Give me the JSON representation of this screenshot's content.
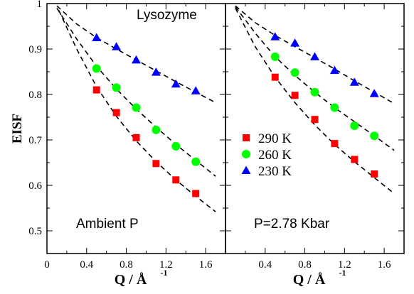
{
  "chart_data": {
    "type": "scatter",
    "ylabel": "EISF",
    "xlabel": "Q / Å",
    "xlabel_exponent": "-1",
    "ylim": [
      0.45,
      1.0
    ],
    "grid": false,
    "y_ticks": [
      "0.5",
      "0.6",
      "0.7",
      "0.8",
      "0.9",
      "1"
    ],
    "colors": {
      "290 K": "#ff0000",
      "260 K": "#00ff00",
      "230 K": "#0000ff"
    },
    "legend": {
      "position": "left of right panel",
      "entries": [
        "290 K",
        "260 K",
        "230 K"
      ]
    },
    "panels": [
      {
        "label": "Ambient P",
        "title": "Lysozyme",
        "xlim": [
          0,
          1.8
        ],
        "x_ticks": [
          "0",
          "0.4",
          "0.8",
          "1.2",
          "1.6"
        ],
        "series": [
          {
            "name": "290 K",
            "marker": "square",
            "x": [
              0.5,
              0.7,
              0.9,
              1.1,
              1.3,
              1.5
            ],
            "y": [
              0.81,
              0.76,
              0.705,
              0.648,
              0.612,
              0.582
            ],
            "fit": [
              [
                0.12,
                0.985
              ],
              [
                0.3,
                0.9
              ],
              [
                0.5,
                0.817
              ],
              [
                0.7,
                0.752
              ],
              [
                0.9,
                0.698
              ],
              [
                1.1,
                0.652
              ],
              [
                1.3,
                0.612
              ],
              [
                1.5,
                0.576
              ],
              [
                1.7,
                0.542
              ]
            ]
          },
          {
            "name": "260 K",
            "marker": "circle",
            "x": [
              0.5,
              0.7,
              0.9,
              1.1,
              1.3,
              1.5
            ],
            "y": [
              0.857,
              0.815,
              0.771,
              0.722,
              0.686,
              0.652
            ],
            "fit": [
              [
                0.1,
                0.99
              ],
              [
                0.3,
                0.922
              ],
              [
                0.5,
                0.862
              ],
              [
                0.7,
                0.812
              ],
              [
                0.9,
                0.768
              ],
              [
                1.1,
                0.728
              ],
              [
                1.3,
                0.69
              ],
              [
                1.5,
                0.655
              ],
              [
                1.7,
                0.62
              ]
            ]
          },
          {
            "name": "230 K",
            "marker": "triangle",
            "x": [
              0.5,
              0.7,
              0.9,
              1.1,
              1.3,
              1.5
            ],
            "y": [
              0.925,
              0.905,
              0.876,
              0.849,
              0.823,
              0.808
            ],
            "fit": [
              [
                0.1,
                0.995
              ],
              [
                0.3,
                0.955
              ],
              [
                0.5,
                0.925
              ],
              [
                0.7,
                0.9
              ],
              [
                0.9,
                0.876
              ],
              [
                1.1,
                0.852
              ],
              [
                1.3,
                0.828
              ],
              [
                1.5,
                0.805
              ],
              [
                1.7,
                0.782
              ]
            ]
          }
        ]
      },
      {
        "label": "P=2.78 Kbar",
        "xlim": [
          0,
          1.8
        ],
        "x_ticks": [
          "0.4",
          "0.8",
          "1.2",
          "1.6"
        ],
        "series": [
          {
            "name": "290 K",
            "marker": "square",
            "x": [
              0.5,
              0.7,
              0.9,
              1.1,
              1.3,
              1.5
            ],
            "y": [
              0.838,
              0.798,
              0.745,
              0.692,
              0.657,
              0.625
            ],
            "fit": [
              [
                0.1,
                0.99
              ],
              [
                0.3,
                0.905
              ],
              [
                0.5,
                0.838
              ],
              [
                0.7,
                0.782
              ],
              [
                0.9,
                0.733
              ],
              [
                1.1,
                0.69
              ],
              [
                1.3,
                0.652
              ],
              [
                1.5,
                0.617
              ],
              [
                1.7,
                0.582
              ]
            ]
          },
          {
            "name": "260 K",
            "marker": "circle",
            "x": [
              0.5,
              0.7,
              0.9,
              1.1,
              1.3,
              1.5
            ],
            "y": [
              0.883,
              0.848,
              0.805,
              0.771,
              0.731,
              0.709
            ],
            "fit": [
              [
                0.1,
                0.993
              ],
              [
                0.3,
                0.935
              ],
              [
                0.5,
                0.883
              ],
              [
                0.7,
                0.842
              ],
              [
                0.9,
                0.805
              ],
              [
                1.1,
                0.771
              ],
              [
                1.3,
                0.74
              ],
              [
                1.5,
                0.709
              ],
              [
                1.7,
                0.677
              ]
            ]
          },
          {
            "name": "230 K",
            "marker": "triangle",
            "x": [
              0.5,
              0.7,
              0.9,
              1.1,
              1.3,
              1.5
            ],
            "y": [
              0.927,
              0.913,
              0.883,
              0.853,
              0.827,
              0.802
            ],
            "fit": [
              [
                0.1,
                0.995
              ],
              [
                0.3,
                0.958
              ],
              [
                0.5,
                0.93
              ],
              [
                0.7,
                0.905
              ],
              [
                0.9,
                0.881
              ],
              [
                1.1,
                0.856
              ],
              [
                1.3,
                0.83
              ],
              [
                1.5,
                0.805
              ],
              [
                1.7,
                0.78
              ]
            ]
          }
        ]
      }
    ]
  }
}
